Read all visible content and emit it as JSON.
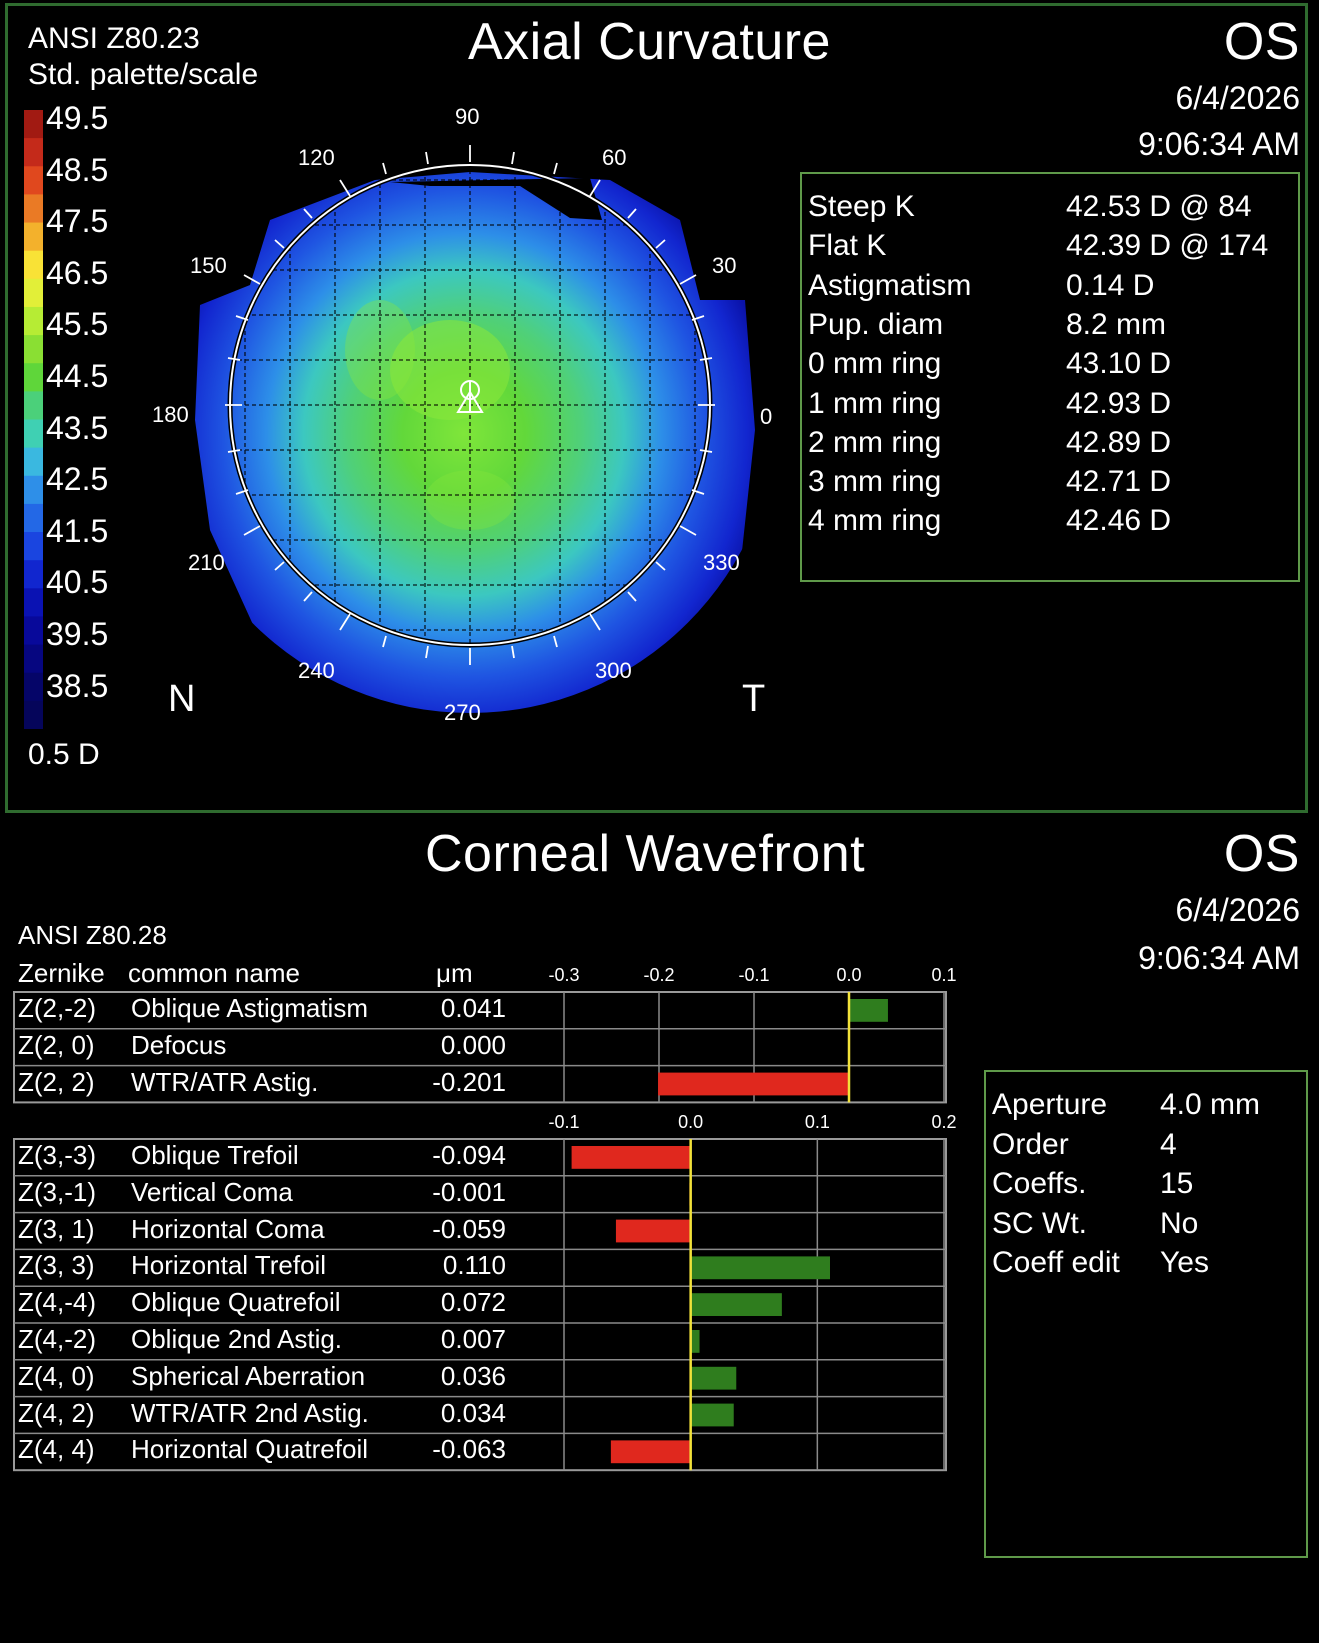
{
  "axial": {
    "standard": "ANSI Z80.23",
    "scale_name": "Std. palette/scale",
    "title": "Axial Curvature",
    "eye": "OS",
    "date": "6/4/2026",
    "time": "9:06:34 AM",
    "step": "0.5 D",
    "scale_labels": [
      "49.5",
      "48.5",
      "47.5",
      "46.5",
      "45.5",
      "44.5",
      "43.5",
      "42.5",
      "41.5",
      "40.5",
      "39.5",
      "38.5"
    ],
    "scale_colors": [
      "#a11a12",
      "#c42a1a",
      "#e0481e",
      "#ea7a25",
      "#f3b12c",
      "#f9e236",
      "#e2ef38",
      "#b6ec34",
      "#8adf33",
      "#5fd63a",
      "#4bd07a",
      "#3fd0b3",
      "#3ab8e0",
      "#2e8fe8",
      "#2368e6",
      "#1a45e0",
      "#1126cf",
      "#0a12b3",
      "#08099a",
      "#060680",
      "#050568",
      "#05055a"
    ],
    "axis_labels": {
      "a90": "90",
      "a120": "120",
      "a60": "60",
      "a150": "150",
      "a30": "30",
      "a180": "180",
      "a0": "0",
      "a210": "210",
      "a330": "330",
      "a240": "240",
      "a300": "300",
      "a270": "270"
    },
    "nasal": "N",
    "temporal": "T",
    "stats": [
      {
        "label": "Steep K",
        "value": "42.53 D @ 84"
      },
      {
        "label": "Flat K",
        "value": "42.39 D @ 174"
      },
      {
        "label": "Astigmatism",
        "value": "0.14 D"
      },
      {
        "label": "Pup. diam",
        "value": "8.2 mm"
      },
      {
        "label": "0 mm ring",
        "value": "43.10 D"
      },
      {
        "label": "1 mm ring",
        "value": "42.93 D"
      },
      {
        "label": "2 mm ring",
        "value": "42.89 D"
      },
      {
        "label": "3 mm ring",
        "value": "42.71 D"
      },
      {
        "label": "4 mm ring",
        "value": "42.46 D"
      }
    ]
  },
  "wavefront": {
    "title": "Corneal Wavefront",
    "eye": "OS",
    "date": "6/4/2026",
    "time": "9:06:34 AM",
    "standard": "ANSI Z80.28",
    "col_zernike": "Zernike",
    "col_name": "common name",
    "col_unit": "μm",
    "params": [
      {
        "label": "Aperture",
        "value": "4.0 mm"
      },
      {
        "label": "Order",
        "value": "4"
      },
      {
        "label": "Coeffs.",
        "value": "15"
      },
      {
        "label": "SC  Wt.",
        "value": "No"
      },
      {
        "label": "Coeff edit",
        "value": "Yes"
      }
    ]
  },
  "chart_data": [
    {
      "type": "bar",
      "orientation": "horizontal",
      "xlim": [
        -0.3,
        0.1
      ],
      "ticks": [
        "-0.3",
        "-0.2",
        "-0.1",
        "0.0",
        "0.1"
      ],
      "tick_values": [
        -0.3,
        -0.2,
        -0.1,
        0.0,
        0.1
      ],
      "rows": [
        {
          "zernike": "Z(2,-2)",
          "name": "Oblique Astigmatism",
          "label": "0.041",
          "value": 0.041
        },
        {
          "zernike": "Z(2, 0)",
          "name": "Defocus",
          "label": "0.000",
          "value": 0.0
        },
        {
          "zernike": "Z(2, 2)",
          "name": "WTR/ATR Astig.",
          "label": "-0.201",
          "value": -0.201
        }
      ],
      "positive_color": "#2f7d1e",
      "negative_color": "#e0281e",
      "zero_line_color": "#f2e23a"
    },
    {
      "type": "bar",
      "orientation": "horizontal",
      "xlim": [
        -0.1,
        0.2
      ],
      "ticks": [
        "-0.1",
        "0.0",
        "0.1",
        "0.2"
      ],
      "tick_values": [
        -0.1,
        0.0,
        0.1,
        0.2
      ],
      "rows": [
        {
          "zernike": "Z(3,-3)",
          "name": "Oblique Trefoil",
          "label": "-0.094",
          "value": -0.094
        },
        {
          "zernike": "Z(3,-1)",
          "name": "Vertical Coma",
          "label": "-0.001",
          "value": -0.001
        },
        {
          "zernike": "Z(3, 1)",
          "name": "Horizontal Coma",
          "label": "-0.059",
          "value": -0.059
        },
        {
          "zernike": "Z(3, 3)",
          "name": "Horizontal Trefoil",
          "label": "0.110",
          "value": 0.11
        },
        {
          "zernike": "Z(4,-4)",
          "name": "Oblique Quatrefoil",
          "label": "0.072",
          "value": 0.072
        },
        {
          "zernike": "Z(4,-2)",
          "name": "Oblique 2nd Astig.",
          "label": "0.007",
          "value": 0.007
        },
        {
          "zernike": "Z(4, 0)",
          "name": "Spherical Aberration",
          "label": "0.036",
          "value": 0.036
        },
        {
          "zernike": "Z(4, 2)",
          "name": "WTR/ATR 2nd Astig.",
          "label": "0.034",
          "value": 0.034
        },
        {
          "zernike": "Z(4, 4)",
          "name": "Horizontal Quatrefoil",
          "label": "-0.063",
          "value": -0.063
        }
      ],
      "positive_color": "#2f7d1e",
      "negative_color": "#e0281e",
      "zero_line_color": "#f2e23a"
    }
  ]
}
